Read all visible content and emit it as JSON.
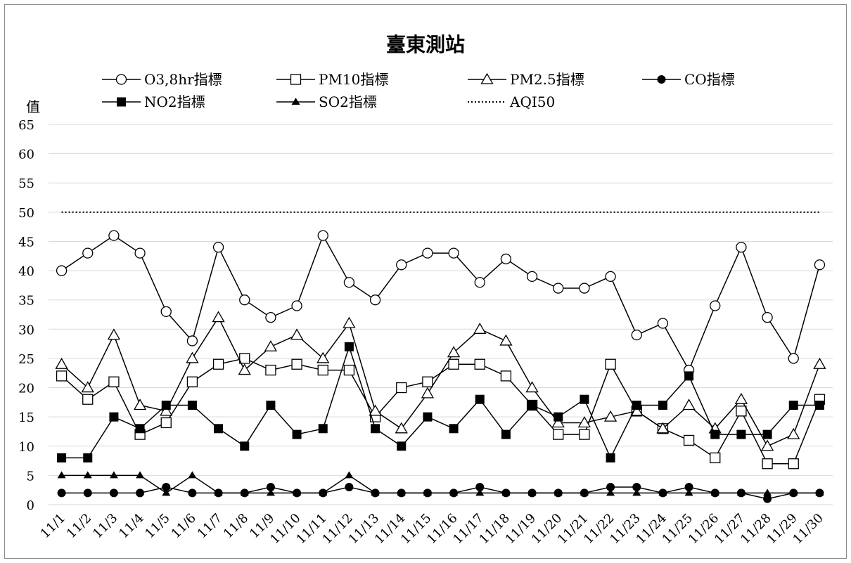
{
  "chart_data": {
    "type": "line",
    "title": "臺東測站",
    "ylabel": "值",
    "xlabel": "",
    "ylim": [
      0,
      65
    ],
    "yticks": [
      0,
      5,
      10,
      15,
      20,
      25,
      30,
      35,
      40,
      45,
      50,
      55,
      60,
      65
    ],
    "grid": true,
    "legend_position": "top",
    "categories": [
      "11/1",
      "11/2",
      "11/3",
      "11/4",
      "11/5",
      "11/6",
      "11/7",
      "11/8",
      "11/9",
      "11/10",
      "11/11",
      "11/12",
      "11/13",
      "11/14",
      "11/15",
      "11/16",
      "11/17",
      "11/18",
      "11/19",
      "11/20",
      "11/21",
      "11/22",
      "11/23",
      "11/24",
      "11/25",
      "11/26",
      "11/27",
      "11/28",
      "11/29",
      "11/30"
    ],
    "series": [
      {
        "name": "O3,8hr指標",
        "marker": "open-circle",
        "values": [
          40,
          43,
          46,
          43,
          33,
          28,
          44,
          35,
          32,
          34,
          46,
          38,
          35,
          41,
          43,
          43,
          38,
          42,
          39,
          37,
          37,
          39,
          29,
          31,
          23,
          34,
          44,
          32,
          25,
          41
        ]
      },
      {
        "name": "PM10指標",
        "marker": "open-square",
        "values": [
          22,
          18,
          21,
          12,
          14,
          21,
          24,
          25,
          23,
          24,
          23,
          23,
          15,
          20,
          21,
          24,
          24,
          22,
          17,
          12,
          12,
          24,
          16,
          13,
          11,
          8,
          16,
          7,
          7,
          18
        ]
      },
      {
        "name": "PM2.5指標",
        "marker": "open-triangle",
        "values": [
          24,
          20,
          29,
          17,
          16,
          25,
          32,
          23,
          27,
          29,
          25,
          31,
          16,
          13,
          19,
          26,
          30,
          28,
          20,
          14,
          14,
          15,
          16,
          13,
          17,
          13,
          18,
          10,
          12,
          24
        ]
      },
      {
        "name": "CO指標",
        "marker": "filled-circle",
        "values": [
          2,
          2,
          2,
          2,
          3,
          2,
          2,
          2,
          3,
          2,
          2,
          3,
          2,
          2,
          2,
          2,
          3,
          2,
          2,
          2,
          2,
          3,
          3,
          2,
          3,
          2,
          2,
          1,
          2,
          2
        ]
      },
      {
        "name": "NO2指標",
        "marker": "filled-square",
        "values": [
          8,
          8,
          15,
          13,
          17,
          17,
          13,
          10,
          17,
          12,
          13,
          27,
          13,
          10,
          15,
          13,
          18,
          12,
          17,
          15,
          18,
          8,
          17,
          17,
          22,
          12,
          12,
          12,
          17,
          17
        ]
      },
      {
        "name": "SO2指標",
        "marker": "filled-triangle",
        "values": [
          5,
          5,
          5,
          5,
          2,
          5,
          2,
          2,
          2,
          2,
          2,
          5,
          2,
          2,
          2,
          2,
          2,
          2,
          2,
          2,
          2,
          2,
          2,
          2,
          2,
          2,
          2,
          2,
          2,
          2
        ]
      },
      {
        "name": "AQI50",
        "marker": "none",
        "style": "dotted",
        "values": [
          50,
          50,
          50,
          50,
          50,
          50,
          50,
          50,
          50,
          50,
          50,
          50,
          50,
          50,
          50,
          50,
          50,
          50,
          50,
          50,
          50,
          50,
          50,
          50,
          50,
          50,
          50,
          50,
          50,
          50
        ]
      }
    ]
  },
  "colors": {
    "line": "#000000",
    "grid": "#d9d9d9",
    "frame": "#8c8c8c"
  }
}
